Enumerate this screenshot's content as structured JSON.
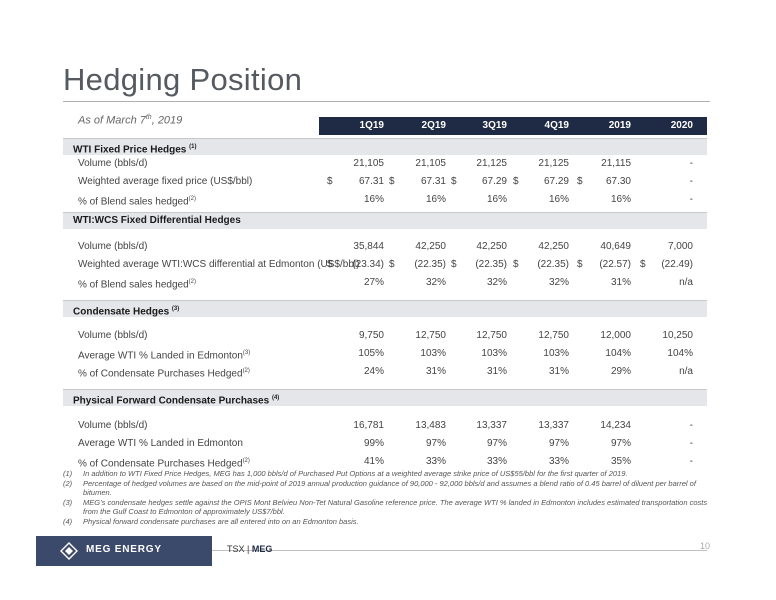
{
  "title": "Hedging Position",
  "as_of": {
    "text": "As of March 7",
    "sup": "th",
    "suffix": ", 2019"
  },
  "columns": [
    "1Q19",
    "2Q19",
    "3Q19",
    "4Q19",
    "2019",
    "2020"
  ],
  "sections": [
    {
      "title": "WTI Fixed Price Hedges",
      "note": "(1)",
      "rows": [
        {
          "label": "Volume (bbls/d)",
          "sup": "",
          "currency": [
            "",
            "",
            "",
            "",
            "",
            ""
          ],
          "values": [
            "21,105",
            "21,105",
            "21,125",
            "21,125",
            "21,115",
            "-"
          ]
        },
        {
          "label": "Weighted average fixed price (US$/bbl)",
          "sup": "",
          "currency": [
            "$",
            "$",
            "$",
            "$",
            "$",
            ""
          ],
          "values": [
            "67.31",
            "67.31",
            "67.29",
            "67.29",
            "67.30",
            "-"
          ]
        },
        {
          "label": "% of Blend sales hedged",
          "sup": "(2)",
          "currency": [
            "",
            "",
            "",
            "",
            "",
            ""
          ],
          "values": [
            "16%",
            "16%",
            "16%",
            "16%",
            "16%",
            "-"
          ]
        }
      ]
    },
    {
      "title": "WTI:WCS Fixed Differential Hedges",
      "note": "",
      "rows": [
        {
          "label": "Volume (bbls/d)",
          "sup": "",
          "currency": [
            "",
            "",
            "",
            "",
            "",
            ""
          ],
          "values": [
            "35,844",
            "42,250",
            "42,250",
            "42,250",
            "40,649",
            "7,000"
          ]
        },
        {
          "label": "Weighted average WTI:WCS differential at Edmonton (US$/bbl)",
          "sup": "",
          "currency": [
            "$",
            "$",
            "$",
            "$",
            "$",
            "$"
          ],
          "values": [
            "(23.34)",
            "(22.35)",
            "(22.35)",
            "(22.35)",
            "(22.57)",
            "(22.49)"
          ]
        },
        {
          "label": "% of Blend sales hedged",
          "sup": "(2)",
          "currency": [
            "",
            "",
            "",
            "",
            "",
            ""
          ],
          "values": [
            "27%",
            "32%",
            "32%",
            "32%",
            "31%",
            "n/a"
          ]
        }
      ]
    },
    {
      "title": "Condensate Hedges",
      "note": "(3)",
      "rows": [
        {
          "label": "Volume (bbls/d)",
          "sup": "",
          "currency": [
            "",
            "",
            "",
            "",
            "",
            ""
          ],
          "values": [
            "9,750",
            "12,750",
            "12,750",
            "12,750",
            "12,000",
            "10,250"
          ]
        },
        {
          "label": "Average WTI % Landed in Edmonton",
          "sup": "(3)",
          "currency": [
            "",
            "",
            "",
            "",
            "",
            ""
          ],
          "values": [
            "105%",
            "103%",
            "103%",
            "103%",
            "104%",
            "104%"
          ]
        },
        {
          "label": "% of Condensate Purchases Hedged",
          "sup": "(2)",
          "currency": [
            "",
            "",
            "",
            "",
            "",
            ""
          ],
          "values": [
            "24%",
            "31%",
            "31%",
            "31%",
            "29%",
            "n/a"
          ]
        }
      ]
    },
    {
      "title": "Physical Forward Condensate Purchases",
      "note": "(4)",
      "rows": [
        {
          "label": "Volume (bbls/d)",
          "sup": "",
          "currency": [
            "",
            "",
            "",
            "",
            "",
            ""
          ],
          "values": [
            "16,781",
            "13,483",
            "13,337",
            "13,337",
            "14,234",
            "-"
          ]
        },
        {
          "label": "Average WTI % Landed in Edmonton",
          "sup": "",
          "currency": [
            "",
            "",
            "",
            "",
            "",
            ""
          ],
          "values": [
            "99%",
            "97%",
            "97%",
            "97%",
            "97%",
            "-"
          ]
        },
        {
          "label": "% of Condensate Purchases Hedged",
          "sup": "(2)",
          "currency": [
            "",
            "",
            "",
            "",
            "",
            ""
          ],
          "values": [
            "41%",
            "33%",
            "33%",
            "33%",
            "35%",
            "-"
          ]
        }
      ]
    }
  ],
  "footnotes": [
    {
      "num": "(1)",
      "text": "In addition to WTI Fixed Price Hedges, MEG has 1,000 bbls/d of Purchased Put Options at a weighted average strike price of US$55/bbl for the first quarter of 2019."
    },
    {
      "num": "(2)",
      "text": "Percentage of hedged volumes are based on the mid-point of 2019 annual production guidance of 90,000 - 92,000 bbls/d and assumes a blend ratio of 0.45 barrel of diluent per barrel of bitumen."
    },
    {
      "num": "(3)",
      "text": "MEG’s condensate hedges settle against the OPIS Mont Belvieu Non-Tet Natural Gasoline reference price. The average WTI % landed in Edmonton includes estimated transportation costs from the Gulf Coast to Edmonton of approximately US$7/bbl."
    },
    {
      "num": "(4)",
      "text": "Physical forward condensate purchases are all entered into on an Edmonton basis."
    }
  ],
  "footer": {
    "logo_text": "MEG ENERGY",
    "logo_icon": "meg-diamond-logo",
    "exchange": "TSX",
    "separator": "|",
    "ticker": "MEG",
    "page": "10"
  },
  "colors": {
    "header_bar": "#1f2a44",
    "section_band": "#e4e6ea",
    "logo_bg": "#3b4a6b"
  }
}
